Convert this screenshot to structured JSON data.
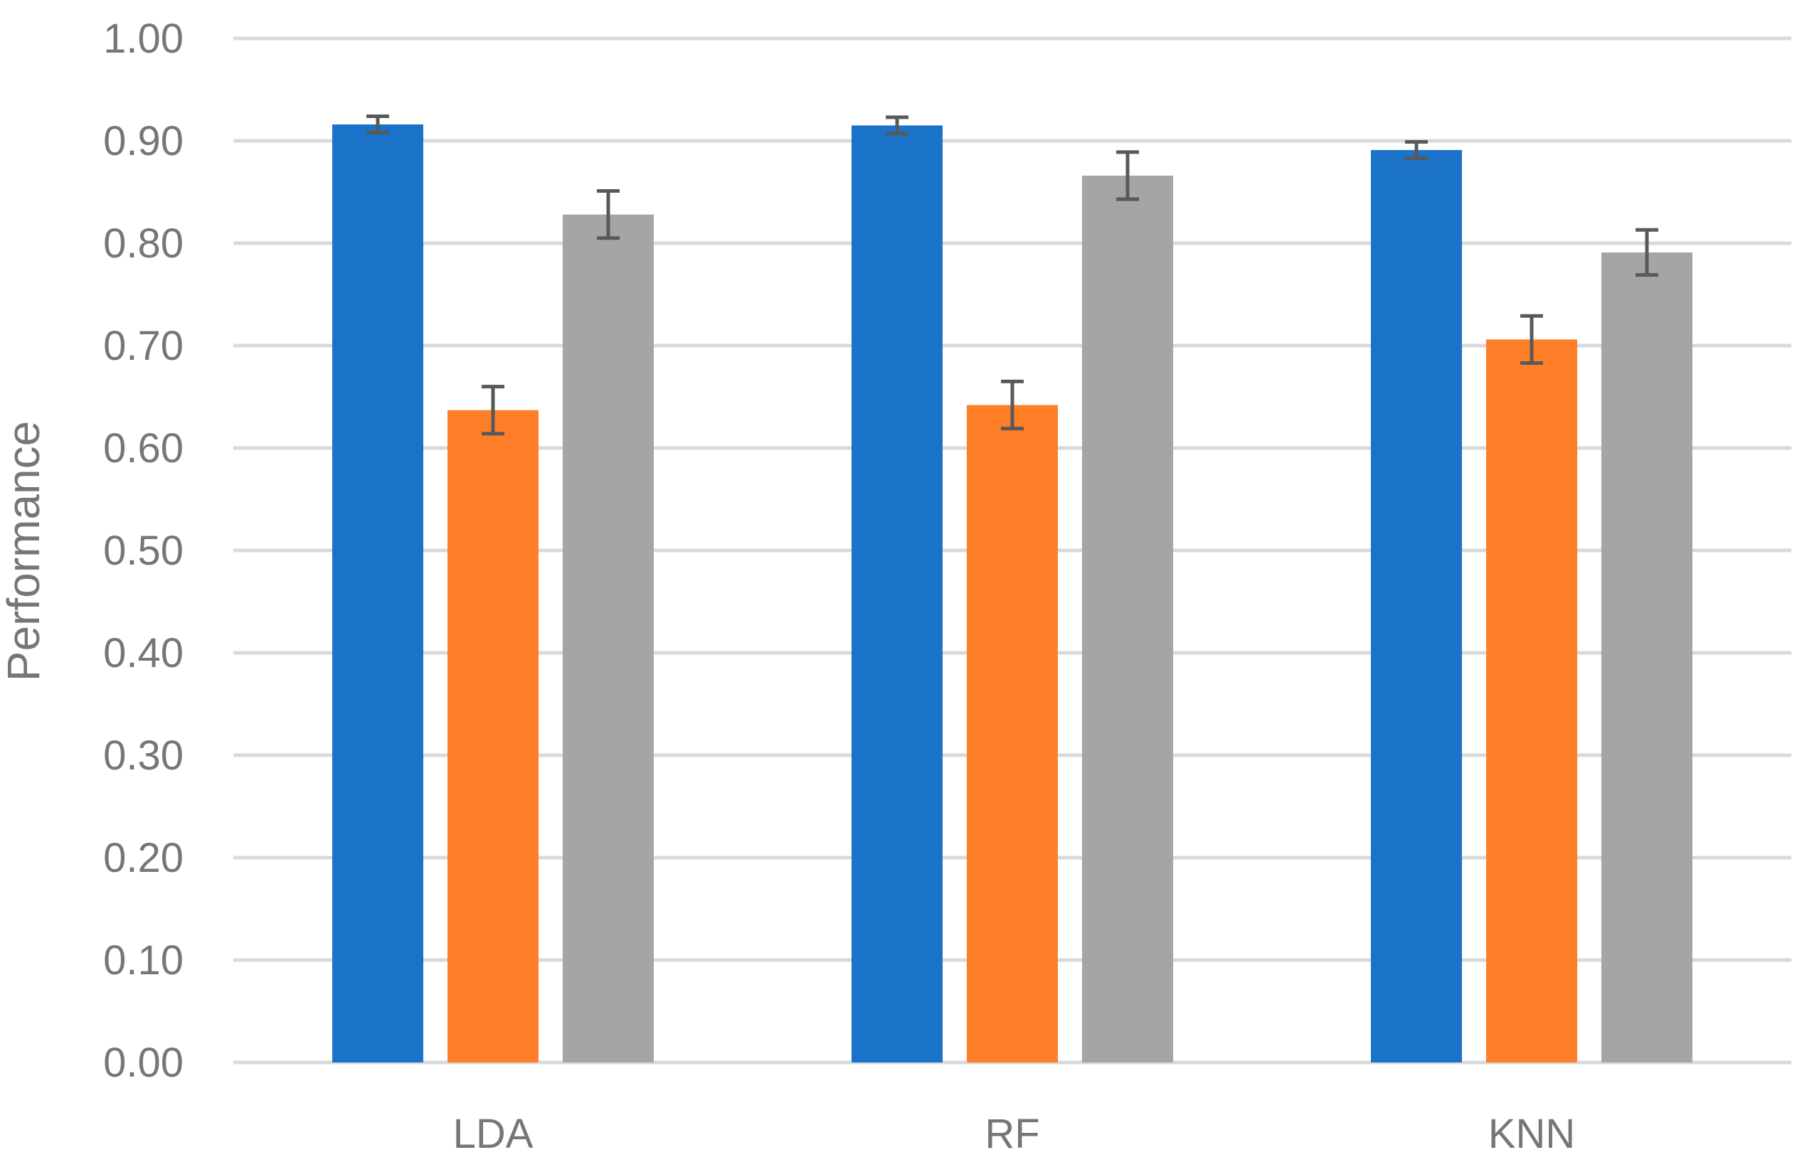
{
  "chart_data": {
    "type": "bar",
    "title": "",
    "xlabel": "",
    "ylabel": "Performance",
    "categories": [
      "LDA",
      "RF",
      "KNN"
    ],
    "ylim": [
      0,
      1
    ],
    "ytick_step": 0.1,
    "ytick_labels": [
      "0.00",
      "0.10",
      "0.20",
      "0.30",
      "0.40",
      "0.50",
      "0.60",
      "0.70",
      "0.80",
      "0.90",
      "1.00"
    ],
    "grid": true,
    "legend": "none",
    "series": [
      {
        "color": "#1A73C8",
        "values": [
          0.916,
          0.915,
          0.891
        ],
        "errors": [
          0.008,
          0.008,
          0.008
        ]
      },
      {
        "color": "#FE7F28",
        "values": [
          0.637,
          0.642,
          0.706
        ],
        "errors": [
          0.023,
          0.023,
          0.023
        ]
      },
      {
        "color": "#A5A5A5",
        "values": [
          0.828,
          0.866,
          0.791
        ],
        "errors": [
          0.023,
          0.023,
          0.022
        ]
      }
    ],
    "error_bar_color": "#595959",
    "gridline_color": "#D9D9D9"
  }
}
